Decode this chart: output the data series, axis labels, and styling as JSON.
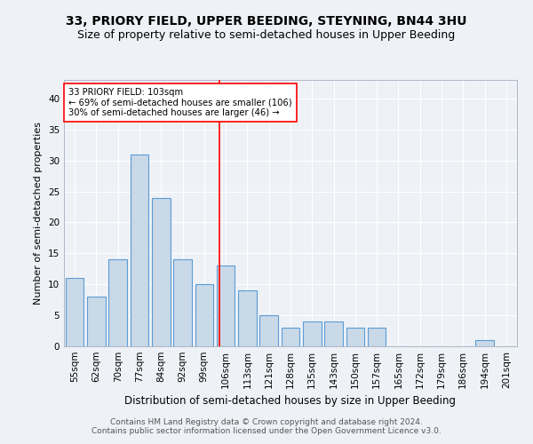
{
  "title": "33, PRIORY FIELD, UPPER BEEDING, STEYNING, BN44 3HU",
  "subtitle": "Size of property relative to semi-detached houses in Upper Beeding",
  "xlabel": "Distribution of semi-detached houses by size in Upper Beeding",
  "ylabel": "Number of semi-detached properties",
  "bar_labels": [
    "55sqm",
    "62sqm",
    "70sqm",
    "77sqm",
    "84sqm",
    "92sqm",
    "99sqm",
    "106sqm",
    "113sqm",
    "121sqm",
    "128sqm",
    "135sqm",
    "143sqm",
    "150sqm",
    "157sqm",
    "165sqm",
    "172sqm",
    "179sqm",
    "186sqm",
    "194sqm",
    "201sqm"
  ],
  "bar_values": [
    11,
    8,
    14,
    31,
    24,
    14,
    10,
    13,
    9,
    5,
    3,
    4,
    4,
    3,
    3,
    0,
    0,
    0,
    0,
    1,
    0
  ],
  "bar_color": "#c9d9e8",
  "bar_edge_color": "#5b9bd5",
  "annotation_line1": "33 PRIORY FIELD: 103sqm",
  "annotation_line2": "← 69% of semi-detached houses are smaller (106)",
  "annotation_line3": "30% of semi-detached houses are larger (46) →",
  "ylim": [
    0,
    43
  ],
  "yticks": [
    0,
    5,
    10,
    15,
    20,
    25,
    30,
    35,
    40
  ],
  "ref_line_x": 6.72,
  "footer": "Contains HM Land Registry data © Crown copyright and database right 2024.\nContains public sector information licensed under the Open Government Licence v3.0.",
  "bg_color": "#eef2f7",
  "grid_color": "#ffffff",
  "title_fontsize": 10,
  "subtitle_fontsize": 9,
  "ylabel_fontsize": 8,
  "xlabel_fontsize": 8.5,
  "tick_fontsize": 7.5,
  "footer_fontsize": 6.5
}
